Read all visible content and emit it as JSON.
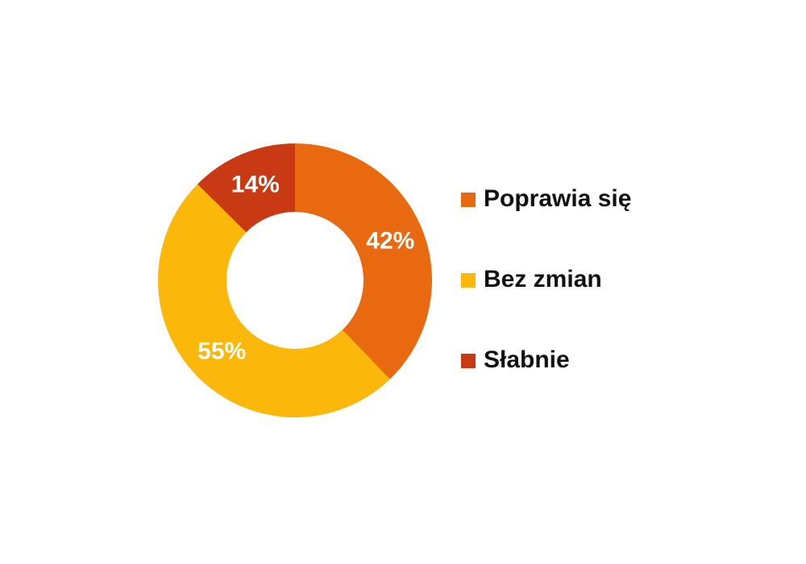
{
  "chart_data": {
    "type": "donut",
    "categories": [
      "Poprawia się",
      "Bez zmian",
      "Słabnie"
    ],
    "values": [
      42,
      55,
      14
    ],
    "value_labels": [
      "42%",
      "55%",
      "14%"
    ],
    "colors": [
      "#e8690f",
      "#fbb80a",
      "#c93a14"
    ],
    "legend": "right"
  }
}
